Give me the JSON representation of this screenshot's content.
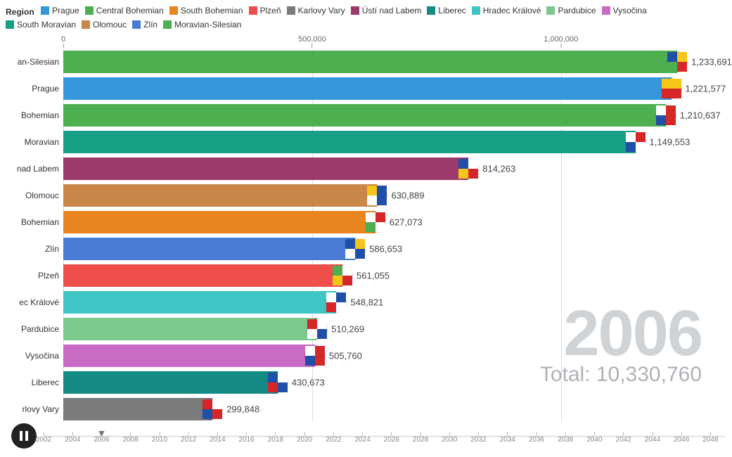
{
  "legend": {
    "title": "Region",
    "items": [
      {
        "label": "Prague",
        "color": "#3498db"
      },
      {
        "label": "Central Bohemian",
        "color": "#4caf50"
      },
      {
        "label": "South Bohemian",
        "color": "#e8851e"
      },
      {
        "label": "Plzeň",
        "color": "#ef4f4a"
      },
      {
        "label": "Karlovy Vary",
        "color": "#7b7b7b"
      },
      {
        "label": "Ústí nad Labem",
        "color": "#9b3a6b"
      },
      {
        "label": "Liberec",
        "color": "#148a84"
      },
      {
        "label": "Hradec Králové",
        "color": "#3fc5c5"
      },
      {
        "label": "Pardubice",
        "color": "#7bc98f"
      },
      {
        "label": "Vysočina",
        "color": "#c96ac4"
      },
      {
        "label": "South Moravian",
        "color": "#16a085"
      },
      {
        "label": "Olomouc",
        "color": "#c9874a"
      },
      {
        "label": "Zlín",
        "color": "#4a7cd6"
      },
      {
        "label": "Moravian-Silesian",
        "color": "#4caf50"
      }
    ]
  },
  "axis": {
    "max": 1300000,
    "ticks": [
      {
        "value": 0,
        "label": "0"
      },
      {
        "value": 500000,
        "label": "500,000"
      },
      {
        "value": 1000000,
        "label": "1,000,000"
      }
    ]
  },
  "bars": [
    {
      "label": "Moravian-Silesian",
      "short": "an-Silesian",
      "value": 1233691,
      "display": "1,233,691",
      "color": "#4caf50",
      "flag": {
        "type": "quad",
        "c": [
          "#1f4fa7",
          "#f5c518",
          "#4caf50",
          "#d62728"
        ]
      }
    },
    {
      "label": "Prague",
      "short": "Prague",
      "value": 1221577,
      "display": "1,221,577",
      "color": "#3498db",
      "flag": {
        "type": "half",
        "c": [
          "#f5c518",
          "#d62728"
        ]
      }
    },
    {
      "label": "Central Bohemian",
      "short": "Bohemian",
      "value": 1210637,
      "display": "1,210,637",
      "color": "#4caf50",
      "flag": {
        "type": "quad",
        "c": [
          "#ffffff",
          "#d62728",
          "#1f4fa7",
          "#d62728"
        ]
      }
    },
    {
      "label": "South Moravian",
      "short": "Moravian",
      "value": 1149553,
      "display": "1,149,553",
      "color": "#16a085",
      "flag": {
        "type": "quad",
        "c": [
          "#ffffff",
          "#d62728",
          "#1f4fa7",
          "#ffffff"
        ]
      }
    },
    {
      "label": "Ústí nad Labem",
      "short": "nad Labem",
      "value": 814263,
      "display": "814,263",
      "color": "#9b3a6b",
      "flag": {
        "type": "quad",
        "c": [
          "#1f4fa7",
          "#ffffff",
          "#f5c518",
          "#d62728"
        ]
      }
    },
    {
      "label": "Olomouc",
      "short": "Olomouc",
      "value": 630889,
      "display": "630,889",
      "color": "#c9874a",
      "flag": {
        "type": "quad",
        "c": [
          "#f5c518",
          "#1f4fa7",
          "#ffffff",
          "#1f4fa7"
        ]
      }
    },
    {
      "label": "South Bohemian",
      "short": "Bohemian",
      "value": 627073,
      "display": "627,073",
      "color": "#e8851e",
      "flag": {
        "type": "quad",
        "c": [
          "#ffffff",
          "#d62728",
          "#4caf50",
          "#ffffff"
        ]
      }
    },
    {
      "label": "Zlín",
      "short": "Zlín",
      "value": 586653,
      "display": "586,653",
      "color": "#4a7cd6",
      "flag": {
        "type": "quad",
        "c": [
          "#1f4fa7",
          "#f5c518",
          "#ffffff",
          "#1f4fa7"
        ]
      }
    },
    {
      "label": "Plzeň",
      "short": "Plzeň",
      "value": 561055,
      "display": "561,055",
      "color": "#ef4f4a",
      "flag": {
        "type": "quad",
        "c": [
          "#4caf50",
          "#ffffff",
          "#f5c518",
          "#d62728"
        ]
      }
    },
    {
      "label": "Hradec Králové",
      "short": "ec Králové",
      "value": 548821,
      "display": "548,821",
      "color": "#3fc5c5",
      "flag": {
        "type": "quad",
        "c": [
          "#ffffff",
          "#1f4fa7",
          "#d62728",
          "#ffffff"
        ]
      }
    },
    {
      "label": "Pardubice",
      "short": "Pardubice",
      "value": 510269,
      "display": "510,269",
      "color": "#7bc98f",
      "flag": {
        "type": "quad",
        "c": [
          "#d62728",
          "#ffffff",
          "#ffffff",
          "#1f4fa7"
        ]
      }
    },
    {
      "label": "Vysočina",
      "short": "Vysočina",
      "value": 505760,
      "display": "505,760",
      "color": "#c96ac4",
      "flag": {
        "type": "quad",
        "c": [
          "#ffffff",
          "#d62728",
          "#1f4fa7",
          "#d62728"
        ]
      }
    },
    {
      "label": "Liberec",
      "short": "Liberec",
      "value": 430673,
      "display": "430,673",
      "color": "#148a84",
      "flag": {
        "type": "quad",
        "c": [
          "#1f4fa7",
          "#ffffff",
          "#d62728",
          "#1f4fa7"
        ]
      }
    },
    {
      "label": "Karlovy Vary",
      "short": "rlovy Vary",
      "value": 299848,
      "display": "299,848",
      "color": "#7b7b7b",
      "flag": {
        "type": "quad",
        "c": [
          "#d62728",
          "#ffffff",
          "#1f4fa7",
          "#d62728"
        ]
      }
    }
  ],
  "year": "2006",
  "total_label": "Total: 10,330,760",
  "timeline": {
    "start": 2002,
    "end": 2049,
    "current": 2006,
    "ticks": [
      2002,
      2004,
      2006,
      2008,
      2010,
      2012,
      2014,
      2016,
      2018,
      2020,
      2022,
      2024,
      2026,
      2028,
      2030,
      2032,
      2034,
      2036,
      2038,
      2040,
      2042,
      2044,
      2046,
      2048
    ]
  },
  "play_state": "playing"
}
